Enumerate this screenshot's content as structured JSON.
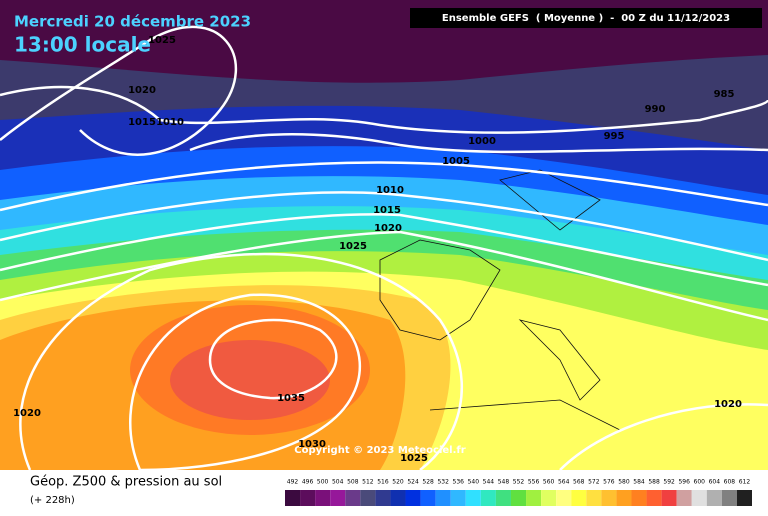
{
  "header": {
    "date": "Mercredi 20 décembre 2023",
    "time": "13:00 locale",
    "model": "Ensemble GEFS  ( Moyenne )  -  00 Z du 11/12/2023"
  },
  "isobar_labels": [
    "1025",
    "1020",
    "1015",
    "1010",
    "1000",
    "1005",
    "995",
    "990",
    "985",
    "1010",
    "1015",
    "1020",
    "1025",
    "1035",
    "1020",
    "1020",
    "1030",
    "1025"
  ],
  "copyright": "Copyright © 2023 Meteociel.fr",
  "footer": {
    "title": "Géop. Z500 & pression au sol",
    "lead": "(+ 228h)"
  },
  "scale": {
    "values": [
      492,
      496,
      500,
      504,
      508,
      512,
      516,
      520,
      524,
      528,
      532,
      536,
      540,
      544,
      548,
      552,
      556,
      560,
      564,
      568,
      572,
      576,
      580,
      584,
      588,
      592,
      596,
      600,
      604,
      608,
      612
    ],
    "colors": [
      "#3b0a3f",
      "#5c0d5c",
      "#7a107a",
      "#96189a",
      "#6a3a8a",
      "#4a4a7a",
      "#303a90",
      "#1030b0",
      "#0030e0",
      "#1060ff",
      "#2090ff",
      "#30b8ff",
      "#30e0ff",
      "#30e8c0",
      "#40e080",
      "#60e040",
      "#a0f040",
      "#e0ff60",
      "#ffff80",
      "#ffff40",
      "#ffe040",
      "#ffc030",
      "#ffa020",
      "#ff8020",
      "#ff6030",
      "#f04040",
      "#d0a0a0",
      "#e0e0e0",
      "#b0b0b0",
      "#808080",
      "#202020"
    ]
  }
}
